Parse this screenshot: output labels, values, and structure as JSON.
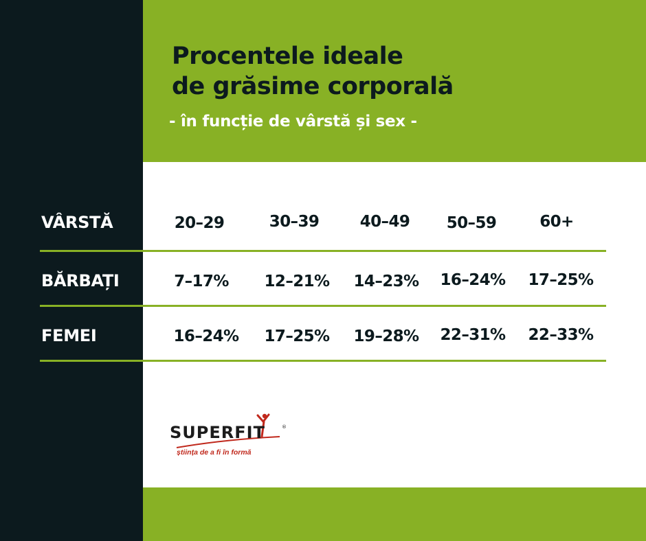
{
  "title": {
    "line1": "Procentele ideale",
    "line2": "de grăsime corporală",
    "subtitle": "- în funcție de vârstă și sex -"
  },
  "table": {
    "rows": [
      {
        "label": "VÂRSTĂ",
        "values": [
          "20–29",
          "30–39",
          "40–49",
          "50–59",
          "60+"
        ]
      },
      {
        "label": "BĂRBAȚI",
        "values": [
          "7–17%",
          "12–21%",
          "14–23%",
          "16–24%",
          "17–25%"
        ]
      },
      {
        "label": "FEMEI",
        "values": [
          "16–24%",
          "17–25%",
          "19–28%",
          "22–31%",
          "22–33%"
        ]
      }
    ]
  },
  "logo": {
    "name": "SUPERFIT",
    "tagline": "știința de a fi în formă"
  },
  "colors": {
    "accent_green": "#88b125",
    "dark": "#0c1a1e",
    "logo_red": "#c0281c"
  }
}
